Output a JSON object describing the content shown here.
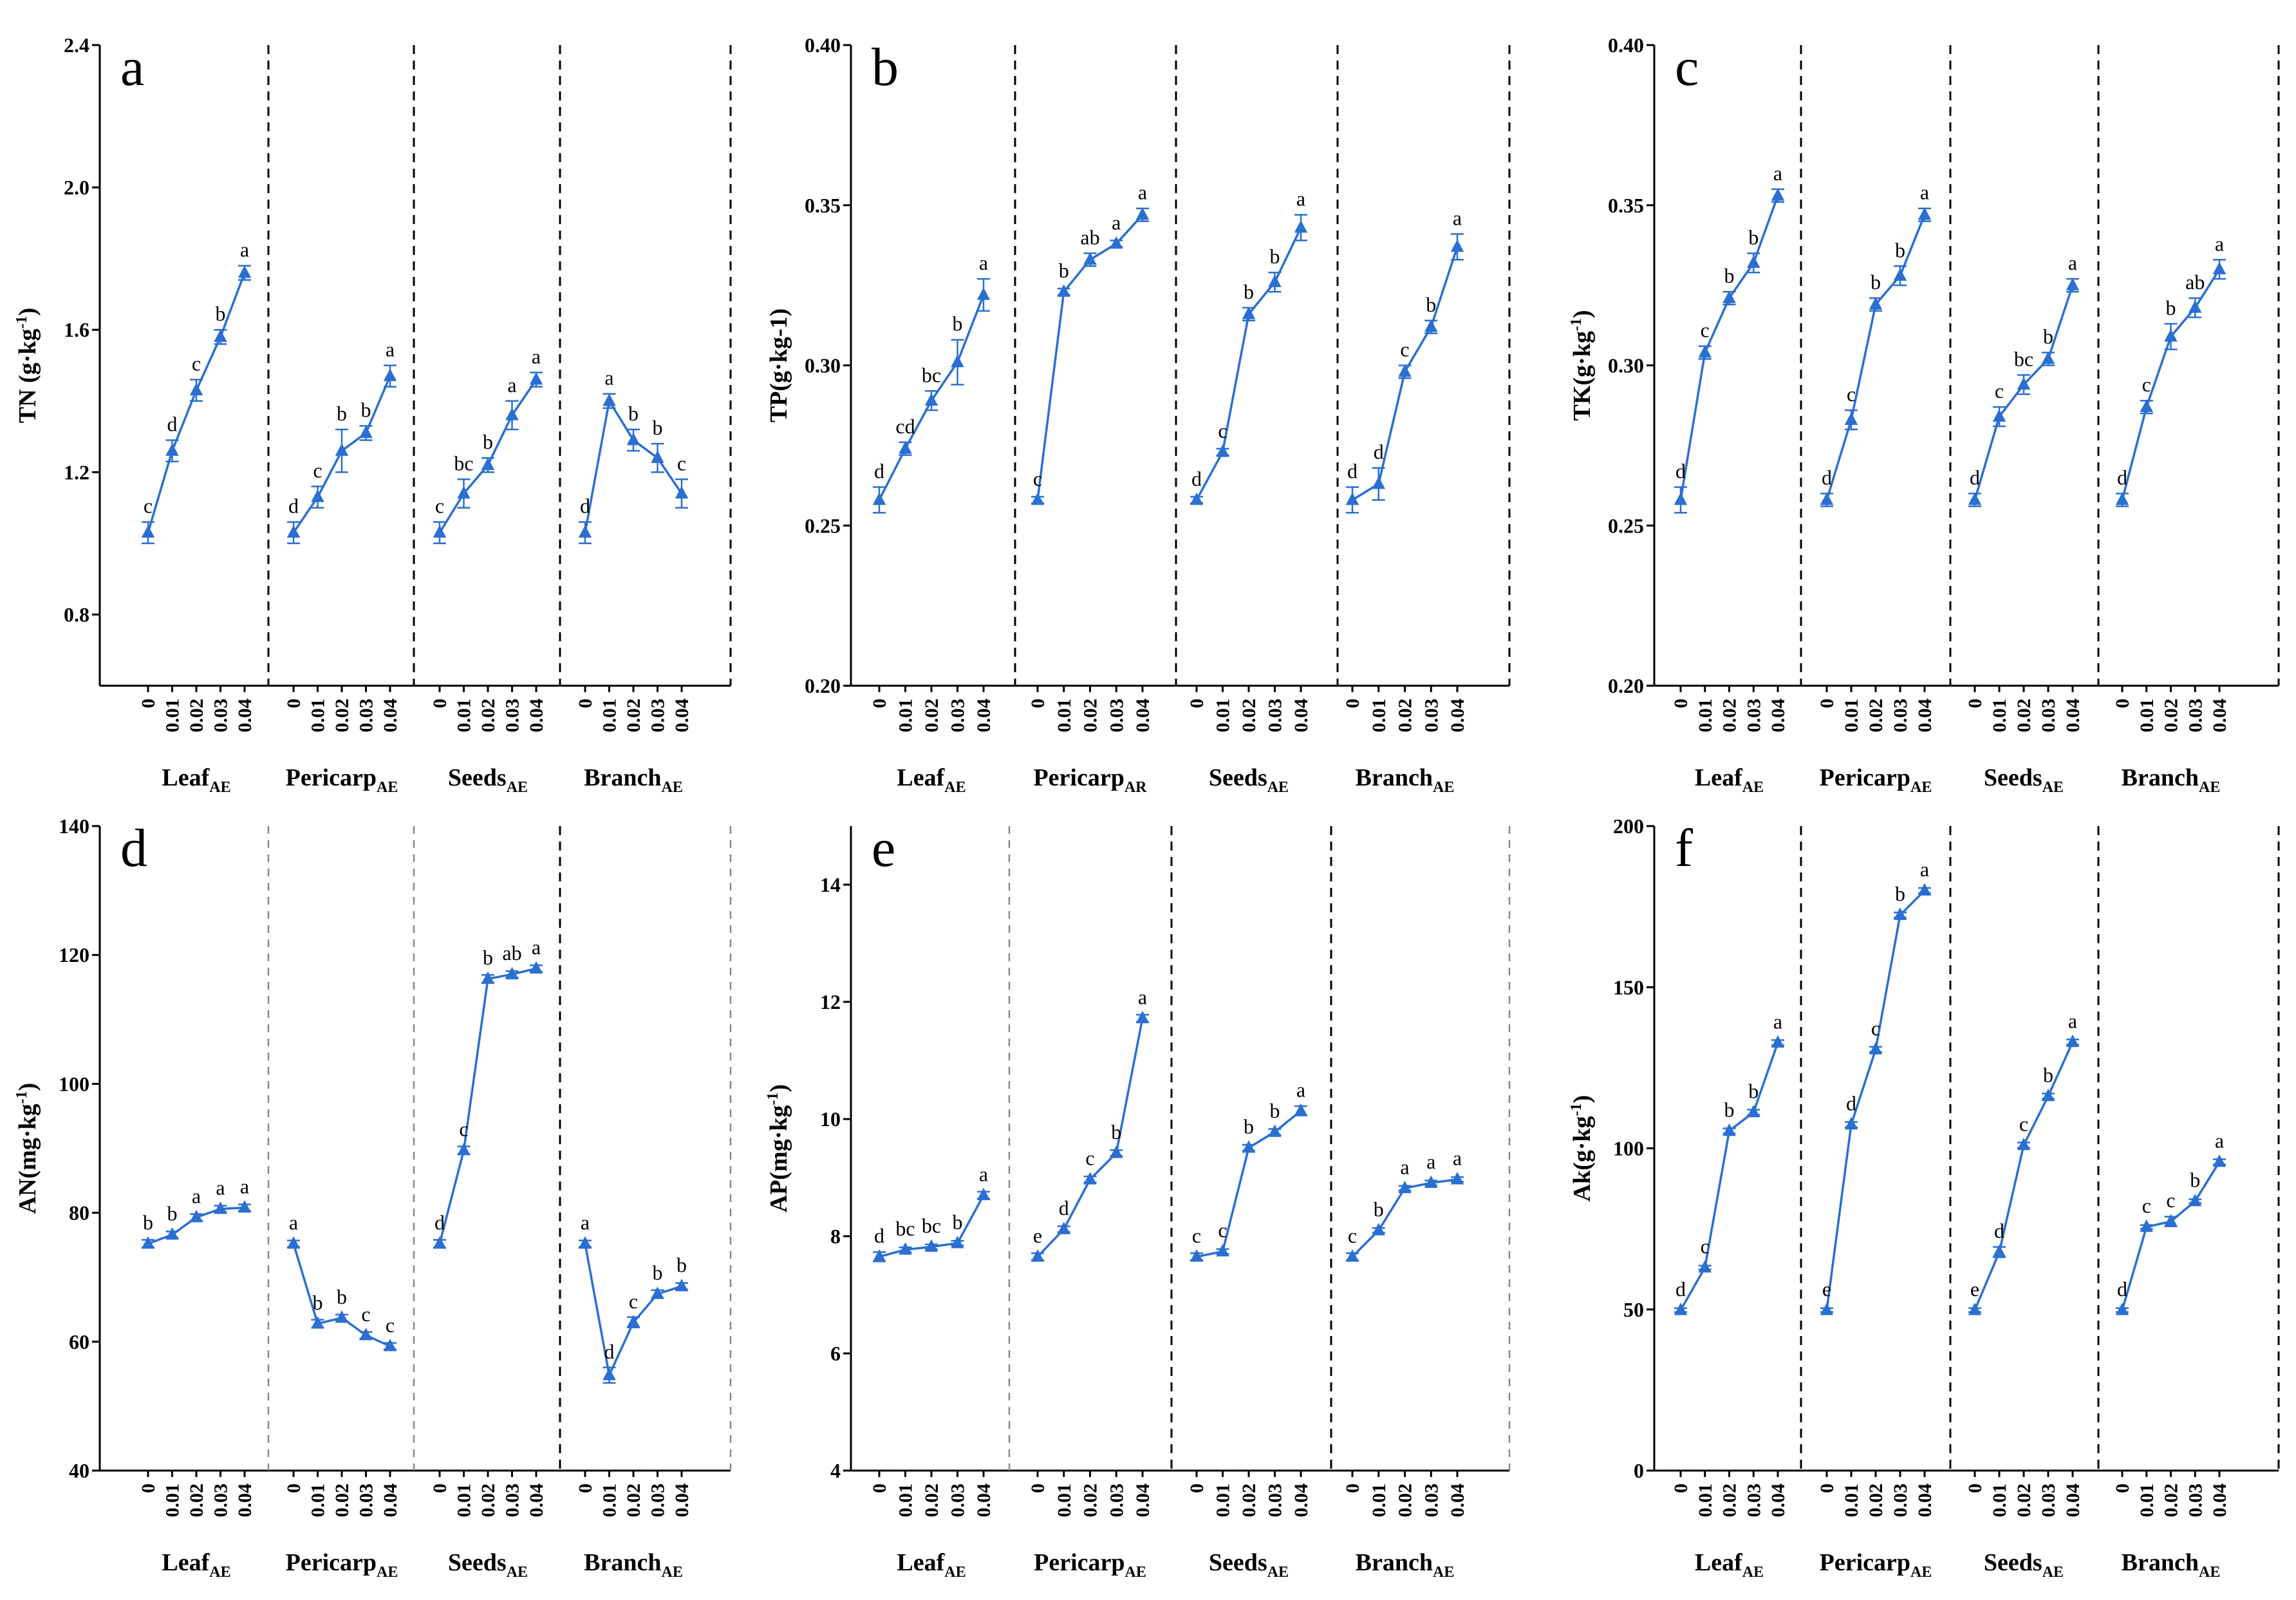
{
  "chart_data": [
    {
      "id": "a",
      "type": "line",
      "panel_letter": "a",
      "ylabel": "TN (g·kg",
      "ylabel_sup": "-1",
      "ylabel_end": ")",
      "ylim": [
        0.6,
        2.4
      ],
      "yticks": [
        0.8,
        1.2,
        1.6,
        2.0,
        2.4
      ],
      "ytick_labels": [
        "0.8",
        "1.2",
        "1.6",
        "2.0",
        "2.4"
      ],
      "categories": [
        "0",
        "0.01",
        "0.02",
        "0.03",
        "0.04"
      ],
      "groups": [
        {
          "name": "Leaf",
          "sub": "AE",
          "values": [
            1.03,
            1.26,
            1.43,
            1.58,
            1.76
          ],
          "errors": [
            0.03,
            0.03,
            0.03,
            0.02,
            0.02
          ],
          "letters": [
            "c",
            "d",
            "c",
            "b",
            "a"
          ]
        },
        {
          "name": "Pericarp",
          "sub": "AE",
          "values": [
            1.03,
            1.13,
            1.26,
            1.31,
            1.47
          ],
          "errors": [
            0.03,
            0.03,
            0.06,
            0.02,
            0.03
          ],
          "letters": [
            "d",
            "c",
            "b",
            "b",
            "a"
          ]
        },
        {
          "name": "Seeds",
          "sub": "AE",
          "values": [
            1.03,
            1.14,
            1.22,
            1.36,
            1.46
          ],
          "errors": [
            0.03,
            0.04,
            0.02,
            0.04,
            0.02
          ],
          "letters": [
            "c",
            "bc",
            "b",
            "a",
            "a"
          ]
        },
        {
          "name": "Branch",
          "sub": "AE",
          "values": [
            1.03,
            1.4,
            1.29,
            1.24,
            1.14
          ],
          "errors": [
            0.03,
            0.02,
            0.03,
            0.04,
            0.04
          ],
          "letters": [
            "d",
            "a",
            "b",
            "b",
            "c"
          ]
        }
      ]
    },
    {
      "id": "b",
      "type": "line",
      "panel_letter": "b",
      "ylabel": "TP(g·kg-1)",
      "ylabel_sup": "",
      "ylabel_end": "",
      "ylim": [
        0.2,
        0.4
      ],
      "yticks": [
        0.2,
        0.25,
        0.3,
        0.35,
        0.4
      ],
      "ytick_labels": [
        "0.20",
        "0.25",
        "0.30",
        "0.35",
        "0.40"
      ],
      "categories": [
        "0",
        "0.01",
        "0.02",
        "0.03",
        "0.04"
      ],
      "groups": [
        {
          "name": "Leaf",
          "sub": "AE",
          "values": [
            0.258,
            0.274,
            0.289,
            0.301,
            0.322
          ],
          "errors": [
            0.004,
            0.002,
            0.003,
            0.007,
            0.005
          ],
          "letters": [
            "d",
            "cd",
            "bc",
            "b",
            "a"
          ]
        },
        {
          "name": "Pericarp",
          "sub": "AR",
          "values": [
            0.258,
            0.323,
            0.333,
            0.338,
            0.347
          ],
          "errors": [
            0.001,
            0.001,
            0.002,
            0.001,
            0.002
          ],
          "letters": [
            "c",
            "b",
            "ab",
            "a",
            "a"
          ]
        },
        {
          "name": "Seeds",
          "sub": "AE",
          "values": [
            0.258,
            0.273,
            0.316,
            0.326,
            0.343
          ],
          "errors": [
            0.001,
            0.001,
            0.002,
            0.003,
            0.004
          ],
          "letters": [
            "d",
            "c",
            "b",
            "b",
            "a"
          ]
        },
        {
          "name": "Branch",
          "sub": "AE",
          "values": [
            0.258,
            0.263,
            0.298,
            0.312,
            0.337
          ],
          "errors": [
            0.004,
            0.005,
            0.002,
            0.002,
            0.004
          ],
          "letters": [
            "d",
            "d",
            "c",
            "b",
            "a"
          ]
        }
      ]
    },
    {
      "id": "c",
      "type": "line",
      "panel_letter": "c",
      "ylabel": "TK(g·kg",
      "ylabel_sup": "-1",
      "ylabel_end": ")",
      "ylim": [
        0.2,
        0.4
      ],
      "yticks": [
        0.2,
        0.25,
        0.3,
        0.35,
        0.4
      ],
      "ytick_labels": [
        "0.20",
        "0.25",
        "0.30",
        "0.35",
        "0.40"
      ],
      "categories": [
        "0",
        "0.01",
        "0.02",
        "0.03",
        "0.04"
      ],
      "groups": [
        {
          "name": "Leaf",
          "sub": "AE",
          "values": [
            0.258,
            0.304,
            0.321,
            0.332,
            0.353
          ],
          "errors": [
            0.004,
            0.002,
            0.002,
            0.003,
            0.002
          ],
          "letters": [
            "d",
            "c",
            "b",
            "b",
            "a"
          ]
        },
        {
          "name": "Pericarp",
          "sub": "AE",
          "values": [
            0.258,
            0.283,
            0.319,
            0.328,
            0.347
          ],
          "errors": [
            0.002,
            0.003,
            0.002,
            0.003,
            0.002
          ],
          "letters": [
            "d",
            "c",
            "b",
            "b",
            "a"
          ]
        },
        {
          "name": "Seeds",
          "sub": "AE",
          "values": [
            0.258,
            0.284,
            0.294,
            0.302,
            0.325
          ],
          "errors": [
            0.002,
            0.003,
            0.003,
            0.002,
            0.002
          ],
          "letters": [
            "d",
            "c",
            "bc",
            "b",
            "a"
          ]
        },
        {
          "name": "Branch",
          "sub": "AE",
          "values": [
            0.258,
            0.287,
            0.309,
            0.318,
            0.33
          ],
          "errors": [
            0.002,
            0.002,
            0.004,
            0.003,
            0.003
          ],
          "letters": [
            "d",
            "c",
            "b",
            "ab",
            "a"
          ]
        }
      ]
    },
    {
      "id": "d",
      "type": "line",
      "panel_letter": "d",
      "ylabel": "AN(mg·kg",
      "ylabel_sup": "-1",
      "ylabel_end": ")",
      "ylim": [
        40,
        140
      ],
      "yticks": [
        40,
        60,
        80,
        100,
        120,
        140
      ],
      "ytick_labels": [
        "40",
        "60",
        "80",
        "100",
        "120",
        "140"
      ],
      "categories": [
        "0",
        "0.01",
        "0.02",
        "0.03",
        "0.04"
      ],
      "groups": [
        {
          "name": "Leaf",
          "sub": "AE",
          "values": [
            75.2,
            76.6,
            79.3,
            80.6,
            80.8
          ],
          "errors": [
            0.6,
            0.5,
            0.5,
            0.5,
            0.5
          ],
          "letters": [
            "b",
            "b",
            "a",
            "a",
            "a"
          ]
        },
        {
          "name": "Pericarp",
          "sub": "AE",
          "values": [
            75.2,
            62.8,
            63.7,
            61.0,
            59.3
          ],
          "errors": [
            0.5,
            0.6,
            0.5,
            0.5,
            0.5
          ],
          "letters": [
            "a",
            "b",
            "b",
            "c",
            "c"
          ]
        },
        {
          "name": "Seeds",
          "sub": "AE",
          "values": [
            75.2,
            89.7,
            116.3,
            117.0,
            117.9
          ],
          "errors": [
            0.6,
            0.6,
            0.6,
            0.5,
            0.5
          ],
          "letters": [
            "d",
            "c",
            "b",
            "ab",
            "a"
          ]
        },
        {
          "name": "Branch",
          "sub": "AE",
          "values": [
            75.2,
            54.8,
            63.0,
            67.4,
            68.6
          ],
          "errors": [
            0.5,
            1.2,
            0.8,
            0.6,
            0.5
          ],
          "letters": [
            "a",
            "d",
            "c",
            "b",
            "b"
          ]
        }
      ]
    },
    {
      "id": "e",
      "type": "line",
      "panel_letter": "e",
      "ylabel": "AP(mg·kg",
      "ylabel_sup": "-1",
      "ylabel_end": ")",
      "ylim": [
        4,
        15
      ],
      "yticks": [
        4,
        6,
        8,
        10,
        12,
        14
      ],
      "ytick_labels": [
        "4",
        "6",
        "8",
        "10",
        "12",
        "14"
      ],
      "categories": [
        "0",
        "0.01",
        "0.02",
        "0.03",
        "0.04"
      ],
      "groups": [
        {
          "name": "Leaf",
          "sub": "AE",
          "values": [
            7.65,
            7.77,
            7.82,
            7.88,
            8.7
          ],
          "errors": [
            0.08,
            0.04,
            0.04,
            0.04,
            0.06
          ],
          "letters": [
            "d",
            "bc",
            "bc",
            "b",
            "a"
          ]
        },
        {
          "name": "Pericarp",
          "sub": "AE",
          "values": [
            7.65,
            8.12,
            8.97,
            9.42,
            11.72
          ],
          "errors": [
            0.06,
            0.05,
            0.05,
            0.05,
            0.06
          ],
          "letters": [
            "e",
            "d",
            "c",
            "b",
            "a"
          ]
        },
        {
          "name": "Seeds",
          "sub": "AE",
          "values": [
            7.65,
            7.74,
            9.51,
            9.78,
            10.14
          ],
          "errors": [
            0.06,
            0.04,
            0.05,
            0.05,
            0.08
          ],
          "letters": [
            "c",
            "c",
            "b",
            "b",
            "a"
          ]
        },
        {
          "name": "Branch",
          "sub": "AE",
          "values": [
            7.65,
            8.1,
            8.82,
            8.91,
            8.97
          ],
          "errors": [
            0.06,
            0.04,
            0.04,
            0.04,
            0.04
          ],
          "letters": [
            "c",
            "b",
            "a",
            "a",
            "a"
          ]
        }
      ]
    },
    {
      "id": "f",
      "type": "line",
      "panel_letter": "f",
      "ylabel": "Ak(g·kg",
      "ylabel_sup": "-1",
      "ylabel_end": ")",
      "ylim": [
        0,
        200
      ],
      "yticks": [
        0,
        50,
        100,
        150,
        200
      ],
      "ytick_labels": [
        "0",
        "50",
        "100",
        "150",
        "200"
      ],
      "categories": [
        "0",
        "0.01",
        "0.02",
        "0.03",
        "0.04"
      ],
      "groups": [
        {
          "name": "Leaf",
          "sub": "AE",
          "values": [
            49.8,
            63.0,
            105.4,
            111.2,
            132.8
          ],
          "errors": [
            0.6,
            0.6,
            0.8,
            0.8,
            0.8
          ],
          "letters": [
            "d",
            "c",
            "b",
            "b",
            "a"
          ]
        },
        {
          "name": "Pericarp",
          "sub": "AE",
          "values": [
            49.8,
            107.4,
            130.7,
            172.4,
            180.0
          ],
          "errors": [
            0.6,
            0.8,
            0.8,
            0.8,
            0.8
          ],
          "letters": [
            "e",
            "d",
            "c",
            "b",
            "a"
          ]
        },
        {
          "name": "Seeds",
          "sub": "AE",
          "values": [
            49.8,
            67.8,
            101.0,
            116.2,
            133.0
          ],
          "errors": [
            0.6,
            1.6,
            0.8,
            0.8,
            0.8
          ],
          "letters": [
            "e",
            "d",
            "c",
            "b",
            "a"
          ]
        },
        {
          "name": "Branch",
          "sub": "AE",
          "values": [
            49.8,
            75.6,
            77.3,
            83.6,
            95.8
          ],
          "errors": [
            0.6,
            0.6,
            1.5,
            0.6,
            0.8
          ],
          "letters": [
            "d",
            "c",
            "c",
            "b",
            "a"
          ]
        }
      ]
    }
  ]
}
